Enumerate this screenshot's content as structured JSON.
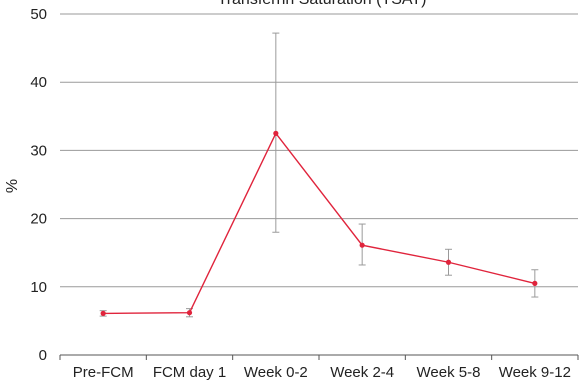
{
  "chart_data": {
    "type": "line",
    "title": "Transferrin Saturation (TSAT)",
    "xlabel": "",
    "ylabel": "%",
    "ylim": [
      0,
      50
    ],
    "yticks": [
      0,
      10,
      20,
      30,
      40,
      50
    ],
    "grid": true,
    "categories": [
      "Pre-FCM",
      "FCM day 1",
      "Week 0-2",
      "Week 2-4",
      "Week 5-8",
      "Week 9-12"
    ],
    "series": [
      {
        "values": [
          6.1,
          6.2,
          32.5,
          16.1,
          13.6,
          10.5
        ],
        "error_low": [
          5.7,
          5.6,
          18.0,
          13.2,
          11.7,
          8.5
        ],
        "error_high": [
          6.5,
          6.8,
          47.2,
          19.2,
          15.5,
          12.5
        ],
        "color": "#e0243c",
        "error_color": "#9a9a9a"
      }
    ],
    "colors": {
      "grid": "#9a9a9a",
      "axis": "#555555"
    }
  }
}
